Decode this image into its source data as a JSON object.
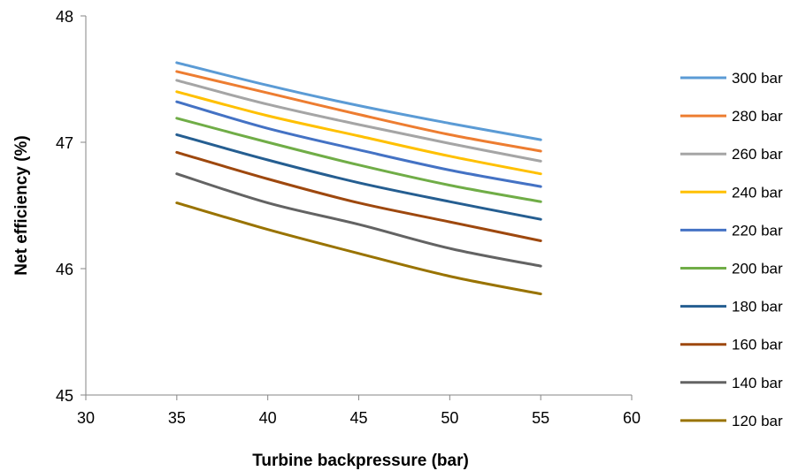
{
  "chart_data": {
    "type": "line",
    "xlabel": "Turbine backpressure (bar)",
    "ylabel": "Net efficiency (%)",
    "xlim": [
      30,
      60
    ],
    "ylim": [
      45,
      48
    ],
    "xticks": [
      "30",
      "35",
      "40",
      "45",
      "50",
      "55",
      "60"
    ],
    "yticks": [
      "45",
      "46",
      "47",
      "48"
    ],
    "grid": false,
    "legend_position": "right",
    "x": [
      35,
      40,
      45,
      50,
      55
    ],
    "series": [
      {
        "name": "300 bar",
        "color": "#5B9BD5",
        "values": [
          47.63,
          47.45,
          47.29,
          47.15,
          47.02
        ]
      },
      {
        "name": "280 bar",
        "color": "#ED7D31",
        "values": [
          47.56,
          47.39,
          47.22,
          47.06,
          46.93
        ]
      },
      {
        "name": "260 bar",
        "color": "#A5A5A5",
        "values": [
          47.49,
          47.3,
          47.14,
          46.99,
          46.85
        ]
      },
      {
        "name": "240 bar",
        "color": "#FFC000",
        "values": [
          47.4,
          47.21,
          47.05,
          46.89,
          46.75
        ]
      },
      {
        "name": "220 bar",
        "color": "#4472C4",
        "values": [
          47.32,
          47.11,
          46.94,
          46.78,
          46.65
        ]
      },
      {
        "name": "200 bar",
        "color": "#70AD47",
        "values": [
          47.19,
          47.0,
          46.82,
          46.66,
          46.53
        ]
      },
      {
        "name": "180 bar",
        "color": "#255E91",
        "values": [
          47.06,
          46.86,
          46.68,
          46.53,
          46.39
        ]
      },
      {
        "name": "160 bar",
        "color": "#9E480E",
        "values": [
          46.92,
          46.71,
          46.52,
          46.37,
          46.22
        ]
      },
      {
        "name": "140 bar",
        "color": "#636363",
        "values": [
          46.75,
          46.52,
          46.35,
          46.16,
          46.02
        ]
      },
      {
        "name": "120 bar",
        "color": "#997300",
        "values": [
          46.52,
          46.31,
          46.12,
          45.94,
          45.8
        ]
      }
    ]
  }
}
